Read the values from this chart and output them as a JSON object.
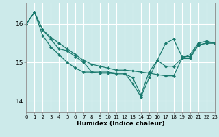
{
  "title": "",
  "xlabel": "Humidex (Indice chaleur)",
  "ylabel": "",
  "background_color": "#cceaea",
  "grid_color": "#ffffff",
  "line_color": "#1a7a6e",
  "xlim": [
    0,
    23
  ],
  "ylim": [
    13.7,
    16.55
  ],
  "yticks": [
    14,
    15,
    16
  ],
  "xtick_labels": [
    "0",
    "1",
    "2",
    "3",
    "4",
    "5",
    "6",
    "7",
    "8",
    "9",
    "10",
    "11",
    "12",
    "13",
    "14",
    "15",
    "16",
    "17",
    "18",
    "19",
    "20",
    "21",
    "22",
    "23"
  ],
  "series": [
    [
      16.0,
      16.3,
      15.85,
      15.65,
      15.5,
      15.35,
      15.2,
      15.05,
      14.95,
      14.9,
      14.85,
      14.8,
      14.8,
      14.78,
      14.75,
      14.72,
      14.68,
      14.65,
      14.65,
      15.1,
      15.2,
      15.5,
      15.55,
      15.5
    ],
    [
      16.0,
      16.3,
      15.7,
      15.4,
      15.2,
      15.0,
      14.85,
      14.75,
      14.75,
      14.72,
      14.72,
      14.7,
      14.7,
      14.6,
      14.15,
      14.75,
      15.05,
      14.9,
      14.9,
      15.1,
      15.1,
      15.45,
      15.5,
      15.5
    ],
    [
      16.0,
      16.3,
      15.85,
      15.6,
      15.35,
      15.3,
      15.15,
      15.0,
      14.75,
      14.75,
      14.75,
      14.72,
      14.72,
      14.45,
      14.1,
      14.6,
      15.05,
      15.5,
      15.6,
      15.15,
      15.15,
      15.45,
      15.5,
      15.5
    ]
  ]
}
